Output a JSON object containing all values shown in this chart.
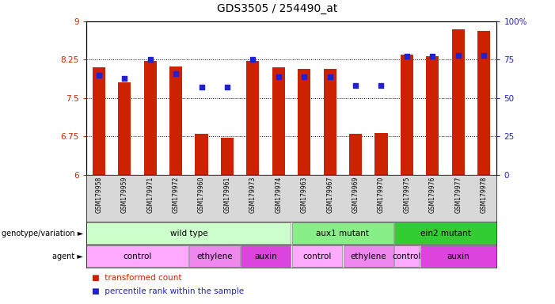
{
  "title": "GDS3505 / 254490_at",
  "samples": [
    "GSM179958",
    "GSM179959",
    "GSM179971",
    "GSM179972",
    "GSM179960",
    "GSM179961",
    "GSM179973",
    "GSM179974",
    "GSM179963",
    "GSM179967",
    "GSM179969",
    "GSM179970",
    "GSM179975",
    "GSM179976",
    "GSM179977",
    "GSM179978"
  ],
  "bar_values": [
    8.1,
    7.8,
    8.22,
    8.12,
    6.8,
    6.72,
    8.22,
    8.1,
    8.07,
    8.07,
    6.8,
    6.82,
    8.35,
    8.32,
    8.85,
    8.82
  ],
  "percentile_values": [
    65,
    63,
    75,
    66,
    57,
    57,
    75,
    64,
    64,
    64,
    58,
    58,
    77,
    77,
    78,
    78
  ],
  "ylim_left": [
    6,
    9
  ],
  "ylim_right": [
    0,
    100
  ],
  "yticks_left": [
    6,
    6.75,
    7.5,
    8.25,
    9
  ],
  "ytick_labels_left": [
    "6",
    "6.75",
    "7.5",
    "8.25",
    "9"
  ],
  "yticks_right": [
    0,
    25,
    50,
    75,
    100
  ],
  "ytick_labels_right": [
    "0",
    "25",
    "50",
    "75",
    "100%"
  ],
  "bar_color": "#cc2200",
  "point_color": "#2222cc",
  "bar_width": 0.5,
  "genotype_groups": [
    {
      "label": "wild type",
      "start": 0,
      "end": 7,
      "color": "#ccffcc"
    },
    {
      "label": "aux1 mutant",
      "start": 8,
      "end": 11,
      "color": "#88ee88"
    },
    {
      "label": "ein2 mutant",
      "start": 12,
      "end": 15,
      "color": "#33cc33"
    }
  ],
  "agent_groups": [
    {
      "label": "control",
      "start": 0,
      "end": 3,
      "color": "#ffaaff"
    },
    {
      "label": "ethylene",
      "start": 4,
      "end": 5,
      "color": "#ee88ee"
    },
    {
      "label": "auxin",
      "start": 6,
      "end": 7,
      "color": "#dd44dd"
    },
    {
      "label": "control",
      "start": 8,
      "end": 9,
      "color": "#ffaaff"
    },
    {
      "label": "ethylene",
      "start": 10,
      "end": 11,
      "color": "#ee88ee"
    },
    {
      "label": "control",
      "start": 12,
      "end": 12,
      "color": "#ffaaff"
    },
    {
      "label": "auxin",
      "start": 13,
      "end": 15,
      "color": "#dd44dd"
    }
  ],
  "bar_color_legend": "#cc2200",
  "point_color_legend": "#2222cc"
}
